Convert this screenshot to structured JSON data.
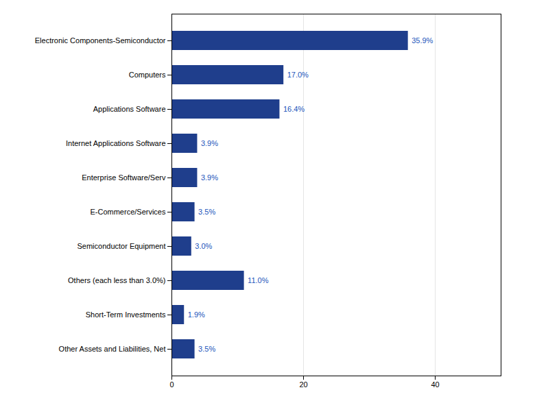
{
  "chart_data": {
    "type": "bar",
    "orientation": "horizontal",
    "categories": [
      "Electronic Components-Semiconductor",
      "Computers",
      "Applications Software",
      "Internet Applications Software",
      "Enterprise Software/Serv",
      "E-Commerce/Services",
      "Semiconductor Equipment",
      "Others (each less than 3.0%)",
      "Short-Term Investments",
      "Other Assets and Liabilities, Net"
    ],
    "values": [
      35.9,
      17.0,
      16.4,
      3.9,
      3.9,
      3.5,
      3.0,
      11.0,
      1.9,
      3.5
    ],
    "value_labels": [
      "35.9%",
      "17.0%",
      "16.4%",
      "3.9%",
      "3.9%",
      "3.5%",
      "3.0%",
      "11.0%",
      "1.9%",
      "3.5%"
    ],
    "data_labels": true,
    "color": "#1F3E8C",
    "xlim": [
      0,
      50
    ],
    "xticks": [
      0,
      20,
      40
    ],
    "grid": true
  }
}
